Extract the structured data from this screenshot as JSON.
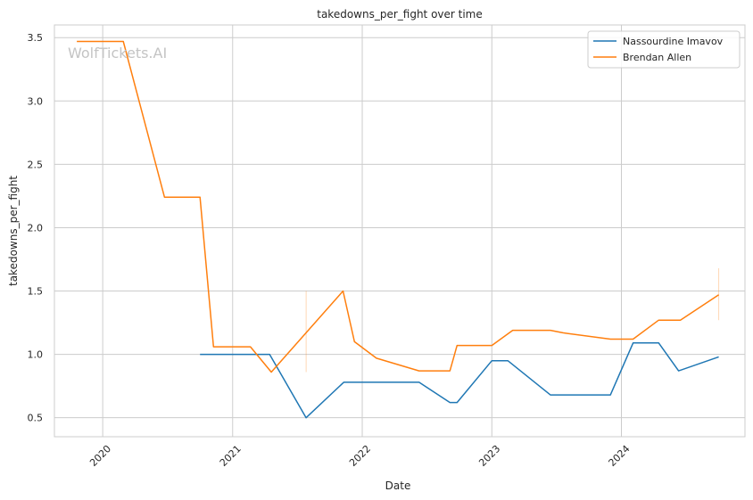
{
  "chart_data": {
    "type": "line",
    "title": "takedowns_per_fight over time",
    "xlabel": "Date",
    "ylabel": "takedowns_per_fight",
    "watermark": "WolfTickets.AI",
    "x_ticks": [
      "2020",
      "2021",
      "2022",
      "2023",
      "2024"
    ],
    "y_ticks": [
      "0.5",
      "1.0",
      "1.5",
      "2.0",
      "2.5",
      "3.0",
      "3.5"
    ],
    "xlim": [
      "2019-08-18",
      "2024-12-14"
    ],
    "ylim": [
      0.35,
      3.6
    ],
    "grid": true,
    "legend_position": "top-right",
    "series": [
      {
        "name": "Nassourdine Imavov",
        "color": "#1f77b4",
        "points": [
          [
            "2020-10-01",
            1.0
          ],
          [
            "2021-04-15",
            1.0
          ],
          [
            "2021-07-27",
            0.5
          ],
          [
            "2021-11-10",
            0.78
          ],
          [
            "2022-06-10",
            0.78
          ],
          [
            "2022-09-05",
            0.62
          ],
          [
            "2022-09-25",
            0.62
          ],
          [
            "2023-01-01",
            0.95
          ],
          [
            "2023-02-15",
            0.95
          ],
          [
            "2023-06-15",
            0.68
          ],
          [
            "2023-12-01",
            0.68
          ],
          [
            "2024-02-03",
            1.09
          ],
          [
            "2024-04-15",
            1.09
          ],
          [
            "2024-06-10",
            0.87
          ],
          [
            "2024-10-01",
            0.98
          ]
        ]
      },
      {
        "name": "Brendan Allen",
        "color": "#ff7f0e",
        "points": [
          [
            "2019-10-20",
            3.47
          ],
          [
            "2020-02-28",
            3.47
          ],
          [
            "2020-06-23",
            2.24
          ],
          [
            "2020-10-01",
            2.24
          ],
          [
            "2020-11-08",
            1.06
          ],
          [
            "2021-02-20",
            1.06
          ],
          [
            "2021-04-20",
            0.86
          ],
          [
            "2021-07-30",
            1.18
          ],
          [
            "2021-11-08",
            1.5
          ],
          [
            "2021-12-10",
            1.1
          ],
          [
            "2022-02-10",
            0.97
          ],
          [
            "2022-06-10",
            0.87
          ],
          [
            "2022-09-05",
            0.87
          ],
          [
            "2022-09-25",
            1.07
          ],
          [
            "2023-01-01",
            1.07
          ],
          [
            "2023-03-01",
            1.19
          ],
          [
            "2023-06-15",
            1.19
          ],
          [
            "2023-07-20",
            1.17
          ],
          [
            "2023-12-01",
            1.12
          ],
          [
            "2024-02-03",
            1.12
          ],
          [
            "2024-04-15",
            1.27
          ],
          [
            "2024-06-15",
            1.27
          ],
          [
            "2024-10-01",
            1.47
          ]
        ]
      }
    ],
    "error_bars": [
      {
        "x": "2021-07-27",
        "low": 0.86,
        "high": 1.5,
        "color": "#ff7f0e"
      },
      {
        "x": "2024-10-01",
        "low": 1.27,
        "high": 1.68,
        "color": "#ff7f0e"
      }
    ]
  }
}
